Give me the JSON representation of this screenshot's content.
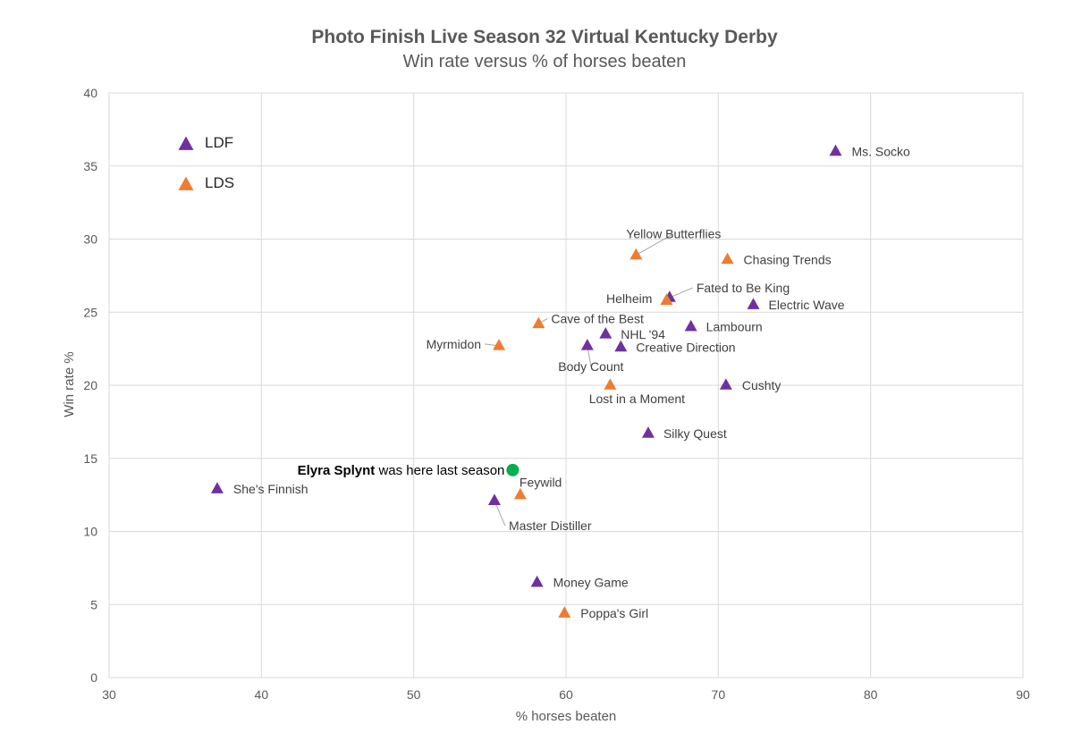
{
  "chart_data": {
    "type": "scatter",
    "title": "Photo Finish Live Season 32 Virtual Kentucky Derby",
    "subtitle": "Win rate versus % of horses beaten",
    "xlabel": "% horses beaten",
    "ylabel": "Win rate %",
    "xlim": [
      30,
      90
    ],
    "ylim": [
      0,
      40
    ],
    "xticks": [
      30,
      40,
      50,
      60,
      70,
      80,
      90
    ],
    "yticks": [
      0,
      5,
      10,
      15,
      20,
      25,
      30,
      35,
      40
    ],
    "grid": true,
    "legend_position": "top-left",
    "series": [
      {
        "name": "LDF",
        "color": "#7030a0",
        "marker": "triangle",
        "points": [
          {
            "label": "Ms. Socko",
            "x": 77.7,
            "y": 36.0
          },
          {
            "label": "Fated to Be King",
            "x": 66.8,
            "y": 26.0
          },
          {
            "label": "Electric Wave",
            "x": 72.3,
            "y": 25.5
          },
          {
            "label": "Lambourn",
            "x": 68.2,
            "y": 24.0
          },
          {
            "label": "NHL '94",
            "x": 62.6,
            "y": 23.5
          },
          {
            "label": "Creative Direction",
            "x": 63.6,
            "y": 22.6
          },
          {
            "label": "Body Count",
            "x": 61.4,
            "y": 22.7
          },
          {
            "label": "Cushty",
            "x": 70.5,
            "y": 20.0
          },
          {
            "label": "Silky Quest",
            "x": 65.4,
            "y": 16.7
          },
          {
            "label": "She's Finnish",
            "x": 37.1,
            "y": 12.9
          },
          {
            "label": "Master Distiller",
            "x": 55.3,
            "y": 12.1
          },
          {
            "label": "Money Game",
            "x": 58.1,
            "y": 6.5
          }
        ]
      },
      {
        "name": "LDS",
        "color": "#ed7d31",
        "marker": "triangle",
        "points": [
          {
            "label": "Yellow Butterflies",
            "x": 64.6,
            "y": 28.9
          },
          {
            "label": "Chasing Trends",
            "x": 70.6,
            "y": 28.6
          },
          {
            "label": "Helheim",
            "x": 66.6,
            "y": 25.8
          },
          {
            "label": "Cave of the Best",
            "x": 58.2,
            "y": 24.2
          },
          {
            "label": "Myrmidon",
            "x": 55.6,
            "y": 22.7
          },
          {
            "label": "Lost in a Moment",
            "x": 62.9,
            "y": 20.0
          },
          {
            "label": "Feywild",
            "x": 57.0,
            "y": 12.5
          },
          {
            "label": "Poppa's Girl",
            "x": 59.9,
            "y": 4.4
          }
        ]
      }
    ],
    "annotation": {
      "bold": "Elyra Splynt",
      "text": " was here last season",
      "x": 56.5,
      "y": 14.2,
      "color": "#00b050"
    }
  }
}
